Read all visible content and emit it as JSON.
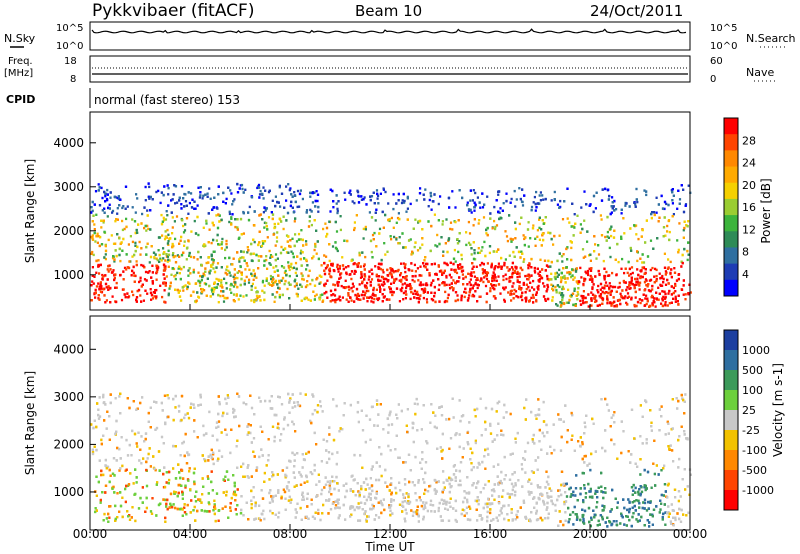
{
  "header": {
    "station": "Pykkvibaer (fitACF)",
    "beam": "Beam 10",
    "date": "24/Oct/2011"
  },
  "top_panels": {
    "nsky": {
      "label": "N.Sky",
      "left_ticks": [
        "10^5",
        "10^0"
      ],
      "right_label": "N.Search",
      "right_ticks": [
        "10^5",
        "10^0"
      ]
    },
    "freq": {
      "label_line1": "Freq.",
      "label_line2": "[MHz]",
      "left_ticks": [
        "18",
        "8"
      ],
      "right_label": "Nave",
      "right_ticks": [
        "60",
        "0"
      ]
    },
    "cpid": {
      "label": "CPID",
      "text": "normal (fast stereo) 153"
    }
  },
  "chart_data": [
    {
      "type": "heatmap",
      "name": "power",
      "xlabel": "",
      "ylabel": "Slant Range [km]",
      "x_range_hours": [
        0,
        24
      ],
      "ylim": [
        200,
        4700
      ],
      "y_ticks": [
        1000,
        2000,
        3000,
        4000
      ],
      "colorbar": {
        "label": "Power [dB]",
        "ticks": [
          "28",
          "24",
          "20",
          "16",
          "12",
          "8",
          "4"
        ],
        "colors": [
          "#ff0000",
          "#ff4400",
          "#ff8800",
          "#ffaa00",
          "#f5d000",
          "#9acd32",
          "#3cb43c",
          "#2e8b57",
          "#2f6fa0",
          "#1e3cb4",
          "#0000ff"
        ]
      }
    },
    {
      "type": "heatmap",
      "name": "velocity",
      "xlabel": "Time UT",
      "ylabel": "Slant Range [km]",
      "x_range_hours": [
        0,
        24
      ],
      "x_ticks": [
        "00:00",
        "04:00",
        "08:00",
        "12:00",
        "16:00",
        "20:00",
        "00:00"
      ],
      "ylim": [
        200,
        4700
      ],
      "y_ticks": [
        1000,
        2000,
        3000,
        4000
      ],
      "colorbar": {
        "label": "Velocity [m s-1]",
        "ticks": [
          "1000",
          "500",
          "100",
          "25",
          "-25",
          "-100",
          "-500",
          "-1000"
        ],
        "colors": [
          "#1c3fa0",
          "#2f6fa0",
          "#3c9a5a",
          "#6ccf3c",
          "#c8c8c8",
          "#f2c200",
          "#ff8800",
          "#ff4400",
          "#ff0000"
        ]
      }
    }
  ]
}
